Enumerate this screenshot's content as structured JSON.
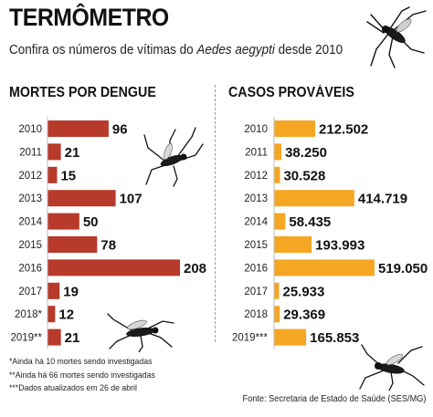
{
  "header": {
    "title": "TERMÔMETRO",
    "subtitle_prefix": "Confira os números de vítimas do ",
    "subtitle_species": "Aedes aegypti",
    "subtitle_suffix": " desde 2010"
  },
  "colors": {
    "deaths_bar": "#b83a2a",
    "cases_bar": "#f5a623",
    "text": "#1a1a1a",
    "divider": "#9a9a9a"
  },
  "chart_data": [
    {
      "type": "bar",
      "orientation": "horizontal",
      "title": "MORTES POR DENGUE",
      "categories": [
        "2010",
        "2011",
        "2012",
        "2013",
        "2014",
        "2015",
        "2016",
        "2017",
        "2018*",
        "2019**"
      ],
      "values": [
        96,
        21,
        15,
        107,
        50,
        78,
        208,
        19,
        12,
        21
      ],
      "value_labels": [
        "96",
        "21",
        "15",
        "107",
        "50",
        "78",
        "208",
        "19",
        "12",
        "21"
      ],
      "xlim": [
        0,
        208
      ],
      "grid": false,
      "legend": "none"
    },
    {
      "type": "bar",
      "orientation": "horizontal",
      "title": "CASOS PROVÁVEIS",
      "categories": [
        "2010",
        "2011",
        "2012",
        "2013",
        "2014",
        "2015",
        "2016",
        "2017",
        "2018",
        "2019***"
      ],
      "values": [
        212502,
        38250,
        30528,
        414719,
        58435,
        193993,
        519050,
        25933,
        29369,
        165853
      ],
      "value_labels": [
        "212.502",
        "38.250",
        "30.528",
        "414.719",
        "58.435",
        "193.993",
        "519.050",
        "25.933",
        "29.369",
        "165.853"
      ],
      "xlim": [
        0,
        519050
      ],
      "grid": false,
      "legend": "none"
    }
  ],
  "notes": [
    "*Ainda há 10 mortes sendo investigadas",
    "**Ainda há 66 mortes sendo investigadas",
    "***Dados atualizados em 26 de abril"
  ],
  "source": "Fonte: Secretaria de Estado de Saúde (SES/MG)",
  "icons": [
    "mosquito-icon"
  ]
}
